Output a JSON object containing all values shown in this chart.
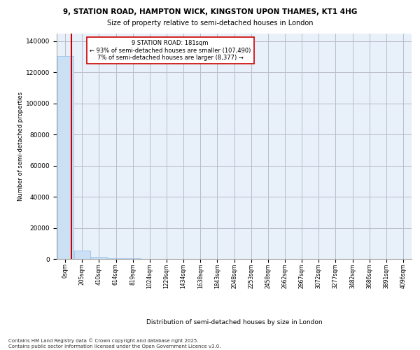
{
  "title_line1": "9, STATION ROAD, HAMPTON WICK, KINGSTON UPON THAMES, KT1 4HG",
  "title_line2": "Size of property relative to semi-detached houses in London",
  "xlabel": "Distribution of semi-detached houses by size in London",
  "ylabel": "Number of semi-detached properties",
  "footer": "Contains HM Land Registry data © Crown copyright and database right 2025.\nContains public sector information licensed under the Open Government Licence v3.0.",
  "annotation_title": "9 STATION ROAD: 181sqm",
  "annotation_line2": "← 93% of semi-detached houses are smaller (107,490)",
  "annotation_line3": "7% of semi-detached houses are larger (8,377) →",
  "property_size": 181,
  "bar_color": "#cce0f5",
  "bar_edgecolor": "#99c4eb",
  "redline_color": "#cc0000",
  "background_color": "#ffffff",
  "plot_bg_color": "#e8f0fa",
  "grid_color": "#bbbbcc",
  "categories": [
    "0sqm",
    "205sqm",
    "410sqm",
    "614sqm",
    "819sqm",
    "1024sqm",
    "1229sqm",
    "1434sqm",
    "1638sqm",
    "1843sqm",
    "2048sqm",
    "2253sqm",
    "2458sqm",
    "2662sqm",
    "2867sqm",
    "3072sqm",
    "3277sqm",
    "3482sqm",
    "3686sqm",
    "3891sqm",
    "4096sqm"
  ],
  "values": [
    130500,
    5200,
    1500,
    600,
    350,
    220,
    150,
    110,
    80,
    60,
    50,
    40,
    35,
    28,
    22,
    18,
    14,
    11,
    9,
    7,
    5
  ],
  "ylim": [
    0,
    145000
  ],
  "yticks": [
    0,
    20000,
    40000,
    60000,
    80000,
    100000,
    120000,
    140000
  ]
}
